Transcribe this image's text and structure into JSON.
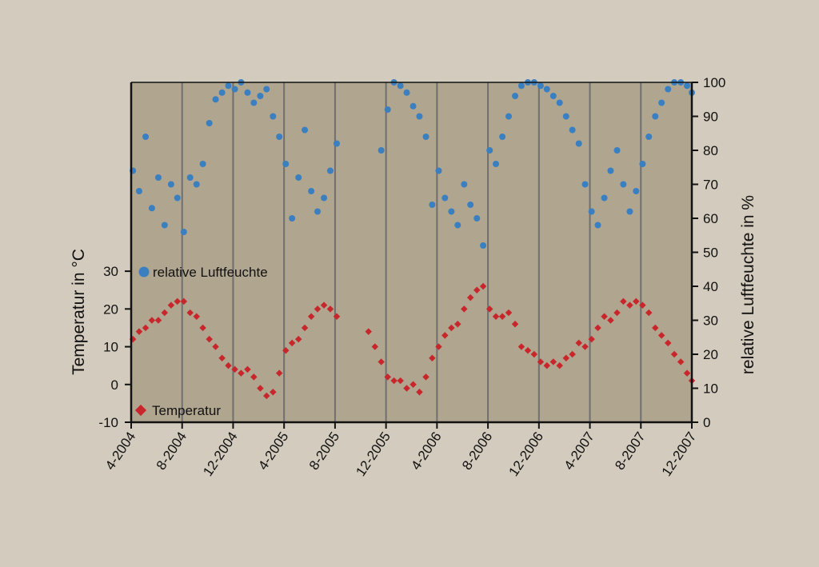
{
  "colors": {
    "page_background": "#d3cbbd",
    "plot_background": "#b0a58f",
    "gridline": "#6f6f6f",
    "axis": "#111111",
    "humidity": "#3a7fc0",
    "temperature": "#c8262b"
  },
  "chart_data": {
    "type": "scatter",
    "grid": "vertical lines at each date tick",
    "x_axis": {
      "type": "date",
      "range": [
        "2004-04",
        "2007-12"
      ],
      "tick_labels": [
        "4-2004",
        "8-2004",
        "12-2004",
        "4-2005",
        "8-2005",
        "12-2005",
        "4-2006",
        "8-2006",
        "12-2006",
        "4-2007",
        "8-2007",
        "12-2007"
      ]
    },
    "y_left": {
      "label": "Temperatur in °C",
      "range": [
        -10,
        80
      ],
      "ticks": [
        -10,
        0,
        10,
        20,
        30
      ],
      "tick_labels": [
        "-10",
        "0",
        "10",
        "20",
        "30"
      ]
    },
    "y_right": {
      "label": "relative Luftfeuchte in %",
      "range": [
        0,
        100
      ],
      "ticks": [
        0,
        10,
        20,
        30,
        40,
        50,
        60,
        70,
        80,
        90,
        100
      ],
      "tick_labels": [
        "0",
        "10",
        "20",
        "30",
        "40",
        "50",
        "60",
        "70",
        "80",
        "90",
        "100"
      ]
    },
    "legend": {
      "placement": "inside left",
      "entries": [
        {
          "name": "relative Luftfeuchte",
          "marker": "circle",
          "color": "#3a7fc0"
        },
        {
          "name": "Temperatur",
          "marker": "diamond",
          "color": "#c8262b"
        }
      ]
    },
    "series": [
      {
        "name": "relative Luftfeuchte",
        "axis": "right",
        "marker": "circle",
        "note": "daily values, approx. 45-100 %, highest in winter (often ~100 %), lower and widely scattered in spring/summer; gap Aug 2005 - Nov 2005",
        "points": [
          [
            "2004-04-05",
            74
          ],
          [
            "2004-04-20",
            68
          ],
          [
            "2004-05-05",
            84
          ],
          [
            "2004-05-20",
            63
          ],
          [
            "2004-06-05",
            72
          ],
          [
            "2004-06-20",
            58
          ],
          [
            "2004-07-05",
            70
          ],
          [
            "2004-07-20",
            66
          ],
          [
            "2004-08-05",
            56
          ],
          [
            "2004-08-20",
            72
          ],
          [
            "2004-09-05",
            70
          ],
          [
            "2004-09-20",
            76
          ],
          [
            "2004-10-05",
            88
          ],
          [
            "2004-10-20",
            95
          ],
          [
            "2004-11-05",
            97
          ],
          [
            "2004-11-20",
            99
          ],
          [
            "2004-12-05",
            98
          ],
          [
            "2004-12-20",
            100
          ],
          [
            "2005-01-05",
            97
          ],
          [
            "2005-01-20",
            94
          ],
          [
            "2005-02-05",
            96
          ],
          [
            "2005-02-20",
            98
          ],
          [
            "2005-03-05",
            90
          ],
          [
            "2005-03-20",
            84
          ],
          [
            "2005-04-05",
            76
          ],
          [
            "2005-04-20",
            60
          ],
          [
            "2005-05-05",
            72
          ],
          [
            "2005-05-20",
            86
          ],
          [
            "2005-06-05",
            68
          ],
          [
            "2005-06-20",
            62
          ],
          [
            "2005-07-05",
            66
          ],
          [
            "2005-07-20",
            74
          ],
          [
            "2005-08-05",
            82
          ],
          [
            "2005-11-20",
            80
          ],
          [
            "2005-12-05",
            92
          ],
          [
            "2005-12-20",
            100
          ],
          [
            "2006-01-05",
            99
          ],
          [
            "2006-01-20",
            97
          ],
          [
            "2006-02-05",
            93
          ],
          [
            "2006-02-20",
            90
          ],
          [
            "2006-03-05",
            84
          ],
          [
            "2006-03-20",
            64
          ],
          [
            "2006-04-05",
            74
          ],
          [
            "2006-04-20",
            66
          ],
          [
            "2006-05-05",
            62
          ],
          [
            "2006-05-20",
            58
          ],
          [
            "2006-06-05",
            70
          ],
          [
            "2006-06-20",
            64
          ],
          [
            "2006-07-05",
            60
          ],
          [
            "2006-07-20",
            52
          ],
          [
            "2006-08-05",
            80
          ],
          [
            "2006-08-20",
            76
          ],
          [
            "2006-09-05",
            84
          ],
          [
            "2006-09-20",
            90
          ],
          [
            "2006-10-05",
            96
          ],
          [
            "2006-10-20",
            99
          ],
          [
            "2006-11-05",
            100
          ],
          [
            "2006-11-20",
            100
          ],
          [
            "2006-12-05",
            99
          ],
          [
            "2006-12-20",
            98
          ],
          [
            "2007-01-05",
            96
          ],
          [
            "2007-01-20",
            94
          ],
          [
            "2007-02-05",
            90
          ],
          [
            "2007-02-20",
            86
          ],
          [
            "2007-03-05",
            82
          ],
          [
            "2007-03-20",
            70
          ],
          [
            "2007-04-05",
            62
          ],
          [
            "2007-04-20",
            58
          ],
          [
            "2007-05-05",
            66
          ],
          [
            "2007-05-20",
            74
          ],
          [
            "2007-06-05",
            80
          ],
          [
            "2007-06-20",
            70
          ],
          [
            "2007-07-05",
            62
          ],
          [
            "2007-07-20",
            68
          ],
          [
            "2007-08-05",
            76
          ],
          [
            "2007-08-20",
            84
          ],
          [
            "2007-09-05",
            90
          ],
          [
            "2007-09-20",
            94
          ],
          [
            "2007-10-05",
            98
          ],
          [
            "2007-10-20",
            100
          ],
          [
            "2007-11-05",
            100
          ],
          [
            "2007-11-20",
            99
          ],
          [
            "2007-12-01",
            97
          ]
        ]
      },
      {
        "name": "Temperatur",
        "axis": "left",
        "marker": "diamond",
        "note": "daily values, approx. -8 to 30 °C, seasonal cycle peaking in July/August and lowest in January/February; gap Aug 2005 - Oct 2005",
        "points": [
          [
            "2004-04-05",
            12
          ],
          [
            "2004-04-20",
            14
          ],
          [
            "2004-05-05",
            15
          ],
          [
            "2004-05-20",
            17
          ],
          [
            "2004-06-05",
            17
          ],
          [
            "2004-06-20",
            19
          ],
          [
            "2004-07-05",
            21
          ],
          [
            "2004-07-20",
            22
          ],
          [
            "2004-08-05",
            22
          ],
          [
            "2004-08-20",
            19
          ],
          [
            "2004-09-05",
            18
          ],
          [
            "2004-09-20",
            15
          ],
          [
            "2004-10-05",
            12
          ],
          [
            "2004-10-20",
            10
          ],
          [
            "2004-11-05",
            7
          ],
          [
            "2004-11-20",
            5
          ],
          [
            "2004-12-05",
            4
          ],
          [
            "2004-12-20",
            3
          ],
          [
            "2005-01-05",
            4
          ],
          [
            "2005-01-20",
            2
          ],
          [
            "2005-02-05",
            -1
          ],
          [
            "2005-02-20",
            -3
          ],
          [
            "2005-03-05",
            -2
          ],
          [
            "2005-03-20",
            3
          ],
          [
            "2005-04-05",
            9
          ],
          [
            "2005-04-20",
            11
          ],
          [
            "2005-05-05",
            12
          ],
          [
            "2005-05-20",
            15
          ],
          [
            "2005-06-05",
            18
          ],
          [
            "2005-06-20",
            20
          ],
          [
            "2005-07-05",
            21
          ],
          [
            "2005-07-20",
            20
          ],
          [
            "2005-08-05",
            18
          ],
          [
            "2005-10-20",
            14
          ],
          [
            "2005-11-05",
            10
          ],
          [
            "2005-11-20",
            6
          ],
          [
            "2005-12-05",
            2
          ],
          [
            "2005-12-20",
            1
          ],
          [
            "2006-01-05",
            1
          ],
          [
            "2006-01-20",
            -1
          ],
          [
            "2006-02-05",
            0
          ],
          [
            "2006-02-20",
            -2
          ],
          [
            "2006-03-05",
            2
          ],
          [
            "2006-03-20",
            7
          ],
          [
            "2006-04-05",
            10
          ],
          [
            "2006-04-20",
            13
          ],
          [
            "2006-05-05",
            15
          ],
          [
            "2006-05-20",
            16
          ],
          [
            "2006-06-05",
            20
          ],
          [
            "2006-06-20",
            23
          ],
          [
            "2006-07-05",
            25
          ],
          [
            "2006-07-20",
            26
          ],
          [
            "2006-08-05",
            20
          ],
          [
            "2006-08-20",
            18
          ],
          [
            "2006-09-05",
            18
          ],
          [
            "2006-09-20",
            19
          ],
          [
            "2006-10-05",
            16
          ],
          [
            "2006-10-20",
            10
          ],
          [
            "2006-11-05",
            9
          ],
          [
            "2006-11-20",
            8
          ],
          [
            "2006-12-05",
            6
          ],
          [
            "2006-12-20",
            5
          ],
          [
            "2007-01-05",
            6
          ],
          [
            "2007-01-20",
            5
          ],
          [
            "2007-02-05",
            7
          ],
          [
            "2007-02-20",
            8
          ],
          [
            "2007-03-05",
            11
          ],
          [
            "2007-03-20",
            10
          ],
          [
            "2007-04-05",
            12
          ],
          [
            "2007-04-20",
            15
          ],
          [
            "2007-05-05",
            18
          ],
          [
            "2007-05-20",
            17
          ],
          [
            "2007-06-05",
            19
          ],
          [
            "2007-06-20",
            22
          ],
          [
            "2007-07-05",
            21
          ],
          [
            "2007-07-20",
            22
          ],
          [
            "2007-08-05",
            21
          ],
          [
            "2007-08-20",
            19
          ],
          [
            "2007-09-05",
            15
          ],
          [
            "2007-09-20",
            13
          ],
          [
            "2007-10-05",
            11
          ],
          [
            "2007-10-20",
            8
          ],
          [
            "2007-11-05",
            6
          ],
          [
            "2007-11-20",
            3
          ],
          [
            "2007-12-01",
            1
          ]
        ]
      }
    ]
  }
}
